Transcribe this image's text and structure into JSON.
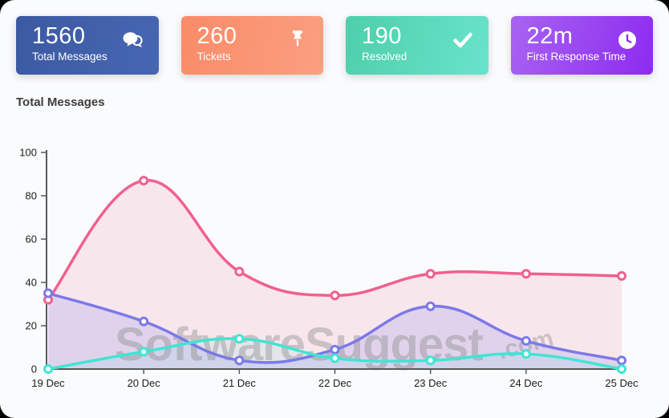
{
  "section": {
    "title": "Total Messages"
  },
  "cards": [
    {
      "value": "1560",
      "label": "Total Messages",
      "icon": "chat-icon",
      "color_from": "#3c5aa2",
      "color_to": "#4766b2"
    },
    {
      "value": "260",
      "label": "Tickets",
      "icon": "pushpin-icon",
      "color_from": "#f98b68",
      "color_to": "#fb9f80"
    },
    {
      "value": "190",
      "label": "Resolved",
      "icon": "check-icon",
      "color_from": "#4ecfaa",
      "color_to": "#69e3cc"
    },
    {
      "value": "22m",
      "label": "First Response Time",
      "icon": "clock-icon",
      "color_from": "#a763f1",
      "color_to": "#8d2bf0"
    }
  ],
  "watermark": {
    "text": "SoftwareSuggest",
    "suffix": ".com",
    "color": "#8e8e8e"
  },
  "chart_data": {
    "type": "line",
    "title": "Total Messages",
    "categories": [
      "19 Dec",
      "20 Dec",
      "21 Dec",
      "22 Dec",
      "23 Dec",
      "24 Dec",
      "25 Dec"
    ],
    "series": [
      {
        "name": "pink",
        "color": "#f1608e",
        "fill": "rgba(241,96,142,0.13)",
        "values": [
          32,
          87,
          45,
          34,
          44,
          44,
          43
        ]
      },
      {
        "name": "purple",
        "color": "#7b79e8",
        "fill": "rgba(123,121,232,0.18)",
        "values": [
          35,
          22,
          4,
          9,
          29,
          13,
          4
        ]
      },
      {
        "name": "teal",
        "color": "#3ee5d4",
        "fill": "rgba(62,229,212,0.10)",
        "values": [
          0,
          8,
          14,
          5,
          4,
          7,
          0
        ]
      }
    ],
    "xlabel": "",
    "ylabel": "",
    "ylim": [
      0,
      100
    ],
    "yticks": [
      0,
      20,
      40,
      60,
      80,
      100
    ],
    "grid": false,
    "legend": "none",
    "axis_color": "#57585b",
    "tick_label_color": "#1d1d1d"
  }
}
